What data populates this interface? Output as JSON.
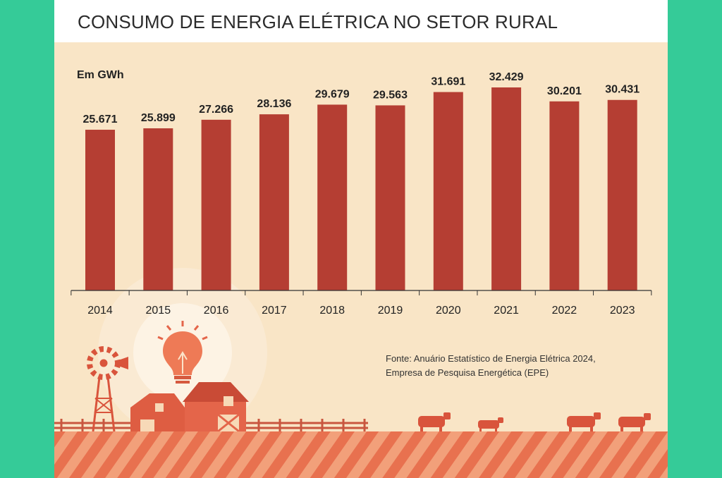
{
  "chart_data": {
    "type": "bar",
    "title": "CONSUMO DE ENERGIA ELÉTRICA NO SETOR RURAL",
    "unit_label": "Em GWh",
    "categories": [
      "2014",
      "2015",
      "2016",
      "2017",
      "2018",
      "2019",
      "2020",
      "2021",
      "2022",
      "2023"
    ],
    "values": [
      25671,
      25899,
      27266,
      28136,
      29679,
      29563,
      31691,
      32429,
      30201,
      30431
    ],
    "value_labels": [
      "25.671",
      "25.899",
      "27.266",
      "28.136",
      "29.679",
      "29.563",
      "31.691",
      "32.429",
      "30.201",
      "30.431"
    ],
    "ylim": [
      0,
      32429
    ],
    "grid": false,
    "legend": "none",
    "bar_color": "#b53e33"
  },
  "source": {
    "line1": "Fonte: Anuário Estatístico de Energia Elétrica 2024,",
    "line2": "Empresa de Pesquisa Energética (EPE)"
  },
  "colors": {
    "frame": "#35cb98",
    "background": "#f9e5c6",
    "bar": "#b53e33",
    "illustration": "#e4654a",
    "bulb_glow": "#fbebd6"
  },
  "icons": [
    "windmill-icon",
    "lightbulb-icon",
    "barn-icon",
    "cow-icon",
    "fence-icon",
    "field-icon"
  ]
}
